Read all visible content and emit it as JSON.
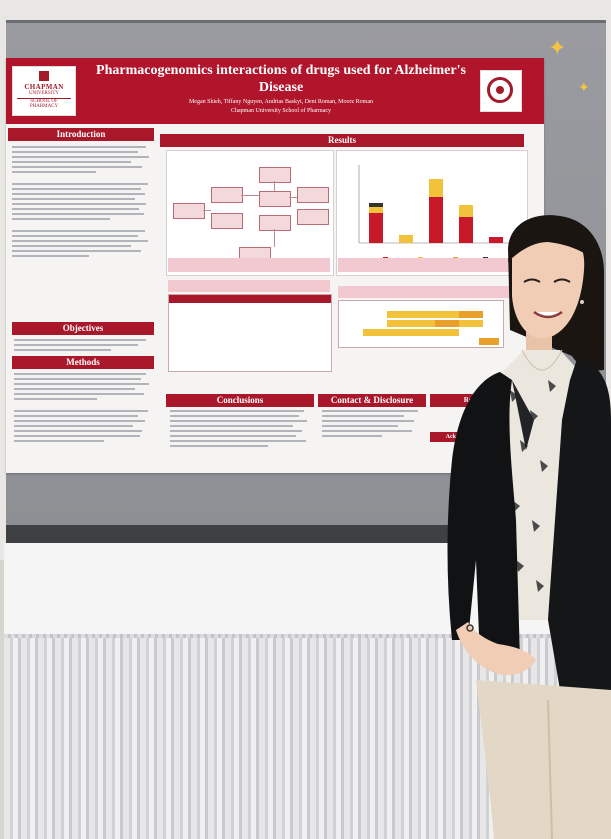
{
  "poster": {
    "logo_line1": "CHAPMAN",
    "logo_line2": "UNIVERSITY",
    "logo_line3": "SCHOOL OF PHARMACY",
    "title": "Pharmacogenomics interactions of drugs used for Alzheimer's Disease",
    "authors": "Megan Shieh, Tiffany Nguyen, Andrias Baskyi, Deni Roman, Moorz Roman",
    "affiliation": "Chapman University School of Pharmacy",
    "sections": {
      "introduction": "Introduction",
      "objectives": "Objectives",
      "methods": "Methods",
      "results": "Results",
      "conclusions": "Conclusions",
      "contact": "Contact & Disclosure",
      "references": "References",
      "acknowledgements": "Acknowled"
    },
    "colors": {
      "brand_red": "#b0152b",
      "accent_orange": "#e9a02a",
      "accent_yellow": "#f2c23a"
    }
  },
  "scene": {
    "objects": [
      "display-board",
      "research-poster",
      "table-with-skirt",
      "presenter",
      "sparkle-decorations"
    ]
  }
}
